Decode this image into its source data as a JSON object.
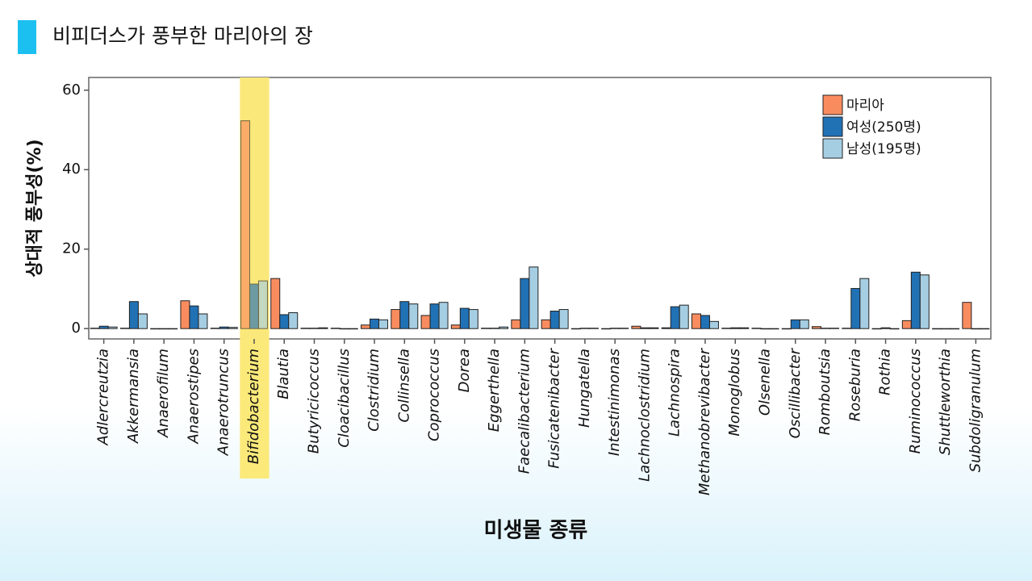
{
  "header": {
    "title": "비피더스가 풍부한 마리아의 장"
  },
  "chart_data": {
    "type": "bar",
    "y_label": "상대적 풍부성(%)",
    "x_label": "미생물 종류",
    "categories": [
      "Adlercreutzia",
      "Akkermansia",
      "Anaerofilum",
      "Anaerostipes",
      "Anaerotruncus",
      "Bifidobacterium",
      "Blautia",
      "Butyricicoccus",
      "Cloacibacillus",
      "Clostridium",
      "Collinsella",
      "Coprococcus",
      "Dorea",
      "Eggerthella",
      "Faecalibacterium",
      "Fusicatenibacter",
      "Hungatella",
      "Intestinimonas",
      "Lachnoclostridium",
      "Lachnospira",
      "Methanobrevibacter",
      "Monoglobus",
      "Olsenella",
      "Oscillibacter",
      "Romboutsia",
      "Roseburia",
      "Rothia",
      "Ruminococcus",
      "Shuttleworthia",
      "Subdoligranulum"
    ],
    "series": [
      {
        "name": "마리아",
        "color": "#f98c5f",
        "values": [
          0.1,
          0.1,
          0,
          7.0,
          0.1,
          52.3,
          12.6,
          0.1,
          0.1,
          0.9,
          4.8,
          3.3,
          0.9,
          0.1,
          2.2,
          2.2,
          0,
          0,
          0.6,
          0.2,
          3.7,
          0.1,
          0.1,
          0,
          0.5,
          0.1,
          0,
          2.0,
          0,
          6.6
        ]
      },
      {
        "name": "여성(250명)",
        "color": "#2171b5",
        "values": [
          0.6,
          6.8,
          0,
          5.7,
          0.4,
          11.2,
          3.5,
          0.1,
          0,
          2.4,
          6.8,
          6.2,
          5.1,
          0.1,
          12.6,
          4.4,
          0.1,
          0.1,
          0.2,
          5.5,
          3.3,
          0.2,
          0,
          2.2,
          0.1,
          10.1,
          0.2,
          14.2,
          0,
          0
        ]
      },
      {
        "name": "남성(195명)",
        "color": "#a6cee3",
        "values": [
          0.4,
          3.7,
          0,
          3.7,
          0.3,
          12.0,
          4.0,
          0.2,
          0,
          2.2,
          6.2,
          6.6,
          4.8,
          0.4,
          15.5,
          4.8,
          0.1,
          0.1,
          0.2,
          5.9,
          1.8,
          0.2,
          0,
          2.2,
          0.1,
          12.6,
          0,
          13.5,
          0,
          0
        ]
      }
    ],
    "ylim": [
      -2.6,
      63.2
    ],
    "yticks": [
      0,
      20,
      40,
      60
    ],
    "highlight": "Bifidobacterium",
    "legend": "top-right"
  }
}
